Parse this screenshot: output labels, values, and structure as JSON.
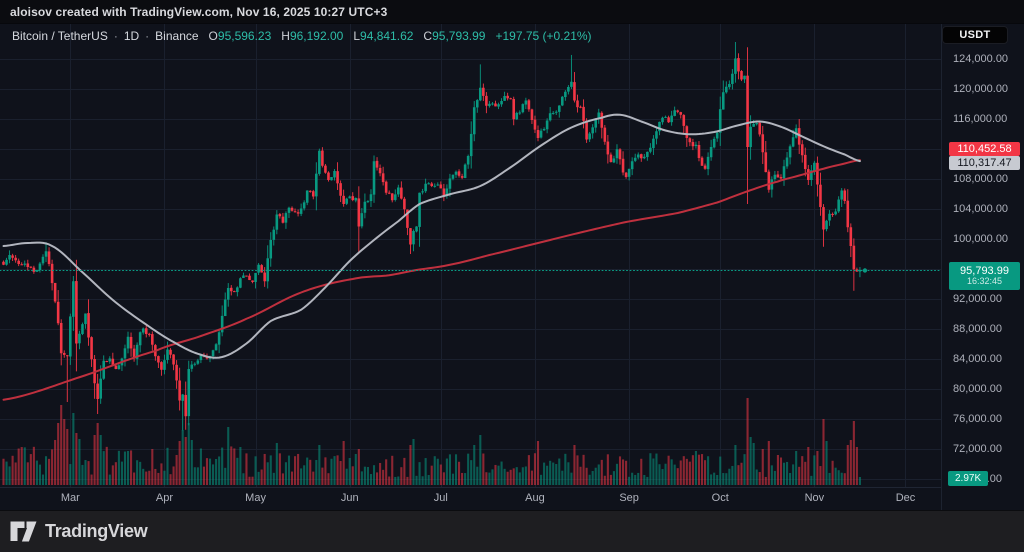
{
  "attribution": "aloisov created with TradingView.com, Nov 16, 2025 10:27 UTC+3",
  "legend": {
    "symbol": "Bitcoin / TetherUS",
    "separator": "·",
    "interval": "1D",
    "exchange": "Binance",
    "o": {
      "label": "O",
      "value": "95,596.23"
    },
    "h": {
      "label": "H",
      "value": "96,192.00"
    },
    "l": {
      "label": "L",
      "value": "94,841.62"
    },
    "c": {
      "label": "C",
      "value": "95,793.99"
    },
    "change": "+197.75 (+0.21%)"
  },
  "currency_button": {
    "label": "USDT"
  },
  "price_scale": {
    "ma_slow_badge": "110,452.58",
    "ma_fast_badge": "110,317.47",
    "last": {
      "price": "95,793.99",
      "countdown": "16:32:45"
    },
    "volume_badge": "2.97K"
  },
  "footer": {
    "brand": "TradingView"
  },
  "colors": {
    "chart_bg": "#0f121b",
    "grid": "#1a202e",
    "axis_line": "#1f2533",
    "up": "#089981",
    "down": "#f23645",
    "vol_up": "rgba(8,153,129,0.55)",
    "vol_down": "rgba(242,54,69,0.55)",
    "ma_fast": "#b2b5be",
    "ma_slow": "#bf303e",
    "price_line": "#0a9e87"
  },
  "chart_data": {
    "type": "candlestick",
    "title": "Bitcoin / TetherUS 1D Binance",
    "days_total": 283,
    "current_price": 95793.99,
    "last_candle": {
      "open": 95596.23,
      "high": 96192.0,
      "low": 94841.62,
      "close": 95793.99
    },
    "price_axis": {
      "visible_range": [
        68000,
        126500
      ],
      "tick_step": 4000,
      "ticks": [
        [
          124000,
          "124,000.00"
        ],
        [
          120000,
          "120,000.00"
        ],
        [
          116000,
          "116,000.00"
        ],
        [
          112000,
          "112,000.00"
        ],
        [
          108000,
          "108,000.00"
        ],
        [
          104000,
          "104,000.00"
        ],
        [
          100000,
          "100,000.00"
        ],
        [
          96000,
          "96,000.00"
        ],
        [
          92000,
          "92,000.00"
        ],
        [
          88000,
          "88,000.00"
        ],
        [
          84000,
          "84,000.00"
        ],
        [
          80000,
          "80,000.00"
        ],
        [
          76000,
          "76,000.00"
        ],
        [
          72000,
          "72,000.00"
        ],
        [
          68000,
          "68,000.00"
        ]
      ]
    },
    "time_axis_months": [
      {
        "label": "Mar",
        "day": 22
      },
      {
        "label": "Apr",
        "day": 53
      },
      {
        "label": "May",
        "day": 83
      },
      {
        "label": "Jun",
        "day": 114
      },
      {
        "label": "Jul",
        "day": 144
      },
      {
        "label": "Aug",
        "day": 175
      },
      {
        "label": "Sep",
        "day": 206
      },
      {
        "label": "Oct",
        "day": 236
      },
      {
        "label": "Nov",
        "day": 267
      },
      {
        "label": "Dec",
        "day": 297
      }
    ],
    "close_anchors": [
      [
        0,
        96500
      ],
      [
        2,
        97800
      ],
      [
        5,
        96600
      ],
      [
        8,
        96200
      ],
      [
        11,
        95800
      ],
      [
        14,
        98300
      ],
      [
        15,
        96600
      ],
      [
        17,
        91600
      ],
      [
        18,
        88700
      ],
      [
        19,
        84700
      ],
      [
        21,
        84300
      ],
      [
        23,
        94300
      ],
      [
        24,
        86000
      ],
      [
        25,
        87300
      ],
      [
        27,
        90000
      ],
      [
        28,
        86800
      ],
      [
        30,
        80700
      ],
      [
        31,
        78600
      ],
      [
        33,
        83700
      ],
      [
        35,
        84000
      ],
      [
        37,
        82600
      ],
      [
        39,
        84000
      ],
      [
        41,
        86900
      ],
      [
        43,
        84000
      ],
      [
        45,
        87500
      ],
      [
        46,
        88000
      ],
      [
        48,
        87200
      ],
      [
        50,
        84300
      ],
      [
        52,
        82500
      ],
      [
        54,
        85200
      ],
      [
        56,
        83200
      ],
      [
        58,
        78400
      ],
      [
        59,
        79200
      ],
      [
        60,
        76300
      ],
      [
        61,
        82600
      ],
      [
        63,
        83300
      ],
      [
        65,
        84500
      ],
      [
        67,
        84000
      ],
      [
        69,
        85100
      ],
      [
        71,
        87500
      ],
      [
        74,
        93400
      ],
      [
        76,
        92900
      ],
      [
        78,
        94700
      ],
      [
        80,
        95000
      ],
      [
        82,
        94200
      ],
      [
        84,
        96500
      ],
      [
        86,
        94300
      ],
      [
        88,
        99800
      ],
      [
        90,
        103200
      ],
      [
        92,
        102100
      ],
      [
        94,
        104100
      ],
      [
        96,
        103500
      ],
      [
        98,
        104000
      ],
      [
        100,
        106400
      ],
      [
        102,
        105600
      ],
      [
        104,
        111700
      ],
      [
        105,
        109700
      ],
      [
        107,
        107800
      ],
      [
        109,
        109000
      ],
      [
        111,
        105700
      ],
      [
        112,
        104600
      ],
      [
        114,
        105600
      ],
      [
        116,
        105400
      ],
      [
        117,
        101600
      ],
      [
        119,
        104900
      ],
      [
        121,
        105900
      ],
      [
        122,
        110300
      ],
      [
        124,
        108700
      ],
      [
        126,
        106100
      ],
      [
        128,
        105100
      ],
      [
        130,
        106800
      ],
      [
        132,
        103900
      ],
      [
        134,
        99200
      ],
      [
        135,
        101000
      ],
      [
        136,
        101600
      ],
      [
        137,
        106100
      ],
      [
        139,
        107300
      ],
      [
        141,
        107000
      ],
      [
        143,
        107200
      ],
      [
        145,
        105700
      ],
      [
        147,
        108000
      ],
      [
        149,
        108900
      ],
      [
        151,
        108100
      ],
      [
        153,
        111000
      ],
      [
        155,
        117500
      ],
      [
        157,
        120100
      ],
      [
        159,
        117700
      ],
      [
        161,
        118000
      ],
      [
        163,
        117900
      ],
      [
        165,
        119000
      ],
      [
        167,
        118600
      ],
      [
        168,
        115900
      ],
      [
        170,
        116800
      ],
      [
        172,
        118400
      ],
      [
        174,
        115800
      ],
      [
        176,
        113400
      ],
      [
        178,
        114600
      ],
      [
        180,
        116700
      ],
      [
        182,
        116900
      ],
      [
        184,
        118900
      ],
      [
        186,
        120200
      ],
      [
        187,
        120900
      ],
      [
        188,
        118400
      ],
      [
        190,
        117500
      ],
      [
        192,
        113200
      ],
      [
        193,
        114000
      ],
      [
        195,
        116000
      ],
      [
        196,
        116800
      ],
      [
        198,
        112900
      ],
      [
        200,
        110200
      ],
      [
        202,
        111900
      ],
      [
        204,
        108800
      ],
      [
        205,
        108200
      ],
      [
        207,
        110300
      ],
      [
        209,
        111200
      ],
      [
        211,
        110900
      ],
      [
        213,
        112100
      ],
      [
        215,
        114300
      ],
      [
        217,
        116100
      ],
      [
        219,
        115500
      ],
      [
        221,
        117100
      ],
      [
        223,
        116500
      ],
      [
        225,
        113400
      ],
      [
        227,
        112300
      ],
      [
        228,
        112500
      ],
      [
        230,
        109700
      ],
      [
        231,
        109300
      ],
      [
        233,
        112200
      ],
      [
        235,
        114100
      ],
      [
        237,
        119500
      ],
      [
        239,
        120600
      ],
      [
        241,
        124000
      ],
      [
        243,
        121200
      ],
      [
        244,
        121700
      ],
      [
        245,
        112200
      ],
      [
        246,
        114900
      ],
      [
        248,
        115400
      ],
      [
        250,
        111500
      ],
      [
        252,
        106500
      ],
      [
        254,
        108500
      ],
      [
        256,
        108000
      ],
      [
        258,
        110800
      ],
      [
        260,
        113500
      ],
      [
        261,
        114700
      ],
      [
        263,
        111100
      ],
      [
        265,
        107800
      ],
      [
        267,
        110100
      ],
      [
        268,
        107200
      ],
      [
        270,
        101200
      ],
      [
        272,
        103300
      ],
      [
        274,
        103600
      ],
      [
        276,
        106400
      ],
      [
        277,
        105000
      ],
      [
        278,
        101500
      ],
      [
        279,
        99000
      ],
      [
        280,
        95900
      ],
      [
        281,
        95600
      ],
      [
        282,
        95794
      ]
    ],
    "wick_overrides": [
      [
        14,
        "h",
        99500
      ],
      [
        21,
        "l",
        78200
      ],
      [
        23,
        "h",
        95000
      ],
      [
        31,
        "l",
        76600
      ],
      [
        59,
        "l",
        74420
      ],
      [
        60,
        "l",
        74500
      ],
      [
        104,
        "h",
        111980
      ],
      [
        117,
        "l",
        98200
      ],
      [
        135,
        "l",
        98300
      ],
      [
        157,
        "h",
        123218
      ],
      [
        187,
        "h",
        124474
      ],
      [
        241,
        "h",
        126200
      ],
      [
        245,
        "l",
        104600
      ],
      [
        270,
        "l",
        98900
      ],
      [
        280,
        "l",
        93029
      ]
    ],
    "ma_fast": {
      "label": "MA fast (gray)",
      "points": [
        [
          0,
          99000
        ],
        [
          8,
          99400
        ],
        [
          16,
          99000
        ],
        [
          26,
          95500
        ],
        [
          36,
          91800
        ],
        [
          46,
          88800
        ],
        [
          56,
          86200
        ],
        [
          65,
          84500
        ],
        [
          72,
          84200
        ],
        [
          80,
          86000
        ],
        [
          88,
          89000
        ],
        [
          98,
          90500
        ],
        [
          106,
          93500
        ],
        [
          114,
          97000
        ],
        [
          122,
          99800
        ],
        [
          130,
          102300
        ],
        [
          137,
          104600
        ],
        [
          147,
          105900
        ],
        [
          157,
          107000
        ],
        [
          167,
          109500
        ],
        [
          177,
          112400
        ],
        [
          187,
          114800
        ],
        [
          197,
          116100
        ],
        [
          203,
          116500
        ],
        [
          210,
          115600
        ],
        [
          218,
          114400
        ],
        [
          226,
          113900
        ],
        [
          234,
          114200
        ],
        [
          242,
          115100
        ],
        [
          249,
          115600
        ],
        [
          256,
          114900
        ],
        [
          263,
          113600
        ],
        [
          270,
          112300
        ],
        [
          277,
          111200
        ],
        [
          282,
          110317
        ]
      ]
    },
    "ma_slow": {
      "label": "MA slow (red)",
      "points": [
        [
          0,
          78500
        ],
        [
          25,
          81500
        ],
        [
          50,
          85000
        ],
        [
          65,
          87000
        ],
        [
          80,
          89300
        ],
        [
          98,
          92800
        ],
        [
          115,
          94600
        ],
        [
          127,
          95100
        ],
        [
          136,
          95800
        ],
        [
          147,
          96500
        ],
        [
          160,
          97800
        ],
        [
          175,
          99300
        ],
        [
          190,
          100800
        ],
        [
          205,
          102200
        ],
        [
          222,
          103400
        ],
        [
          235,
          104800
        ],
        [
          245,
          106300
        ],
        [
          255,
          107600
        ],
        [
          262,
          108400
        ],
        [
          270,
          109300
        ],
        [
          276,
          109900
        ],
        [
          282,
          110452
        ]
      ]
    },
    "volume": {
      "current_label": "2.97K",
      "spikes": [
        [
          17,
          45
        ],
        [
          18,
          62
        ],
        [
          19,
          80
        ],
        [
          20,
          66
        ],
        [
          21,
          56
        ],
        [
          23,
          72
        ],
        [
          24,
          52
        ],
        [
          25,
          46
        ],
        [
          30,
          50
        ],
        [
          31,
          62
        ],
        [
          32,
          50
        ],
        [
          41,
          34
        ],
        [
          49,
          36
        ],
        [
          58,
          44
        ],
        [
          59,
          55
        ],
        [
          60,
          48
        ],
        [
          61,
          62
        ],
        [
          62,
          45
        ],
        [
          74,
          58
        ],
        [
          78,
          38
        ],
        [
          90,
          42
        ],
        [
          104,
          40
        ],
        [
          112,
          44
        ],
        [
          117,
          36
        ],
        [
          134,
          40
        ],
        [
          135,
          46
        ],
        [
          155,
          40
        ],
        [
          157,
          50
        ],
        [
          176,
          44
        ],
        [
          188,
          40
        ],
        [
          228,
          34
        ],
        [
          241,
          40
        ],
        [
          245,
          87
        ],
        [
          246,
          48
        ],
        [
          247,
          42
        ],
        [
          250,
          36
        ],
        [
          252,
          44
        ],
        [
          261,
          34
        ],
        [
          265,
          38
        ],
        [
          268,
          34
        ],
        [
          270,
          66
        ],
        [
          271,
          44
        ],
        [
          278,
          40
        ],
        [
          279,
          45
        ],
        [
          280,
          64
        ],
        [
          281,
          38
        ],
        [
          282,
          8
        ]
      ]
    }
  }
}
